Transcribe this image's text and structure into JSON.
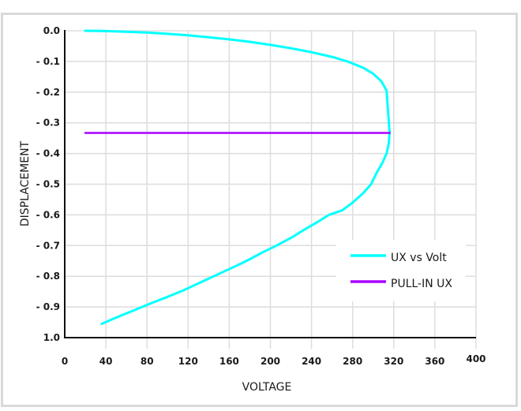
{
  "chart_data": {
    "type": "line",
    "title": "",
    "xlabel": "VOLTAGE",
    "ylabel": "DISPLACEMENT",
    "xlim": [
      0,
      400
    ],
    "ylim": [
      -1.0,
      0.0
    ],
    "grid": true,
    "legend_position": "lower right (inside plot)",
    "x_ticks": [
      "0",
      "40",
      "80",
      "120",
      "160",
      "200",
      "240",
      "280",
      "320",
      "360",
      "400"
    ],
    "y_ticks": [
      "0.0",
      "- 0.1",
      "- 0.2",
      "- 0.3",
      "- 0.4",
      "- 0.5",
      "- 0.6",
      "- 0.7",
      "- 0.8",
      "- 0.9",
      "1.0"
    ],
    "series": [
      {
        "name": "UX vs Volt",
        "color": "#00ffff",
        "x": [
          20,
          40,
          60,
          80,
          100,
          120,
          140,
          160,
          180,
          200,
          220,
          240,
          260,
          275,
          290,
          300,
          308,
          313,
          316,
          315,
          313,
          309,
          303,
          298,
          290,
          280,
          270,
          257,
          245,
          232,
          220,
          206,
          192,
          178,
          163,
          148,
          132,
          116,
          100,
          84,
          68,
          52,
          36
        ],
        "y": [
          0.0,
          -0.001,
          -0.003,
          -0.006,
          -0.01,
          -0.015,
          -0.021,
          -0.028,
          -0.036,
          -0.046,
          -0.057,
          -0.07,
          -0.085,
          -0.1,
          -0.12,
          -0.14,
          -0.165,
          -0.195,
          -0.333,
          -0.37,
          -0.4,
          -0.43,
          -0.465,
          -0.5,
          -0.53,
          -0.56,
          -0.585,
          -0.6,
          -0.625,
          -0.65,
          -0.675,
          -0.7,
          -0.723,
          -0.748,
          -0.772,
          -0.795,
          -0.82,
          -0.845,
          -0.867,
          -0.888,
          -0.91,
          -0.932,
          -0.955
        ]
      },
      {
        "name": "PULL-IN UX",
        "color": "#aa00ff",
        "x": [
          20,
          316
        ],
        "y": [
          -0.333,
          -0.333
        ]
      }
    ]
  }
}
